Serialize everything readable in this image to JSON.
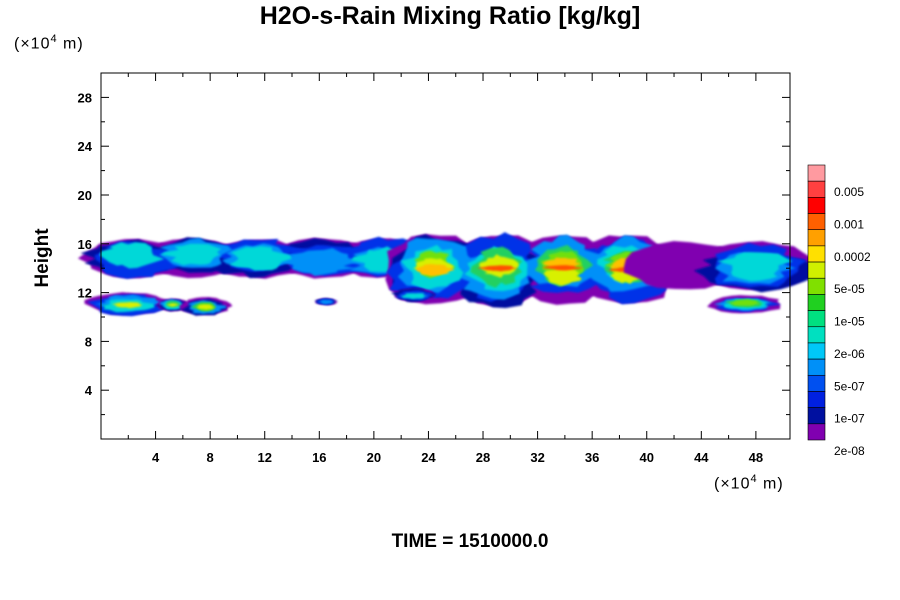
{
  "header": {
    "title": "H2O-s-Rain Mixing Ratio [kg/kg]",
    "y_unit_prefix": "(×10",
    "y_unit_exp": "4",
    "y_unit_suffix": " m)",
    "x_unit_prefix": "(×10",
    "x_unit_exp": "4",
    "x_unit_suffix": " m)"
  },
  "footer": {
    "time_label": "TIME = 1510000.0"
  },
  "chart_data": {
    "type": "heatmap",
    "title": "H2O-s-Rain Mixing Ratio [kg/kg]",
    "xlabel": "",
    "ylabel": "Height",
    "xlim": [
      0,
      50.5
    ],
    "ylim": [
      0,
      30
    ],
    "x_ticks": [
      4,
      8,
      12,
      16,
      20,
      24,
      28,
      32,
      36,
      40,
      44,
      48
    ],
    "y_ticks": [
      4,
      8,
      12,
      16,
      20,
      24,
      28
    ],
    "colorbar": {
      "labels": [
        "0.005",
        "0.001",
        "0.0002",
        "5e-05",
        "1e-05",
        "2e-06",
        "5e-07",
        "1e-07",
        "2e-08"
      ],
      "colors": [
        "#ff9aa0",
        "#ff4040",
        "#ff0000",
        "#ff6000",
        "#ffa000",
        "#ffe000",
        "#d0f000",
        "#80e000",
        "#20d020",
        "#00e080",
        "#00e0c0",
        "#00c8f8",
        "#0090f8",
        "#0050f0",
        "#0020e0",
        "#0010a0",
        "#8000b0"
      ]
    },
    "regions": [
      {
        "name": "upper-band-west",
        "x": [
          0,
          23
        ],
        "y": [
          13.2,
          16.4
        ],
        "level": "low"
      },
      {
        "name": "upper-band-core",
        "x": [
          22,
          41
        ],
        "y": [
          11,
          16.8
        ],
        "level": "high",
        "peak": "0.0002"
      },
      {
        "name": "upper-band-east",
        "x": [
          40,
          50.5
        ],
        "y": [
          12.2,
          16.2
        ],
        "level": "low"
      },
      {
        "name": "lower-patch-1",
        "x": [
          0,
          4
        ],
        "y": [
          10.2,
          12
        ],
        "level": "medium"
      },
      {
        "name": "lower-patch-2",
        "x": [
          4.5,
          6
        ],
        "y": [
          10.5,
          11.5
        ],
        "level": "medium"
      },
      {
        "name": "lower-patch-3",
        "x": [
          6.5,
          8.8
        ],
        "y": [
          10.2,
          11.6
        ],
        "level": "medium"
      },
      {
        "name": "lower-patch-4",
        "x": [
          16,
          17
        ],
        "y": [
          11,
          11.5
        ],
        "level": "low"
      },
      {
        "name": "lower-patch-5",
        "x": [
          22,
          24
        ],
        "y": [
          11.3,
          12.3
        ],
        "level": "low"
      },
      {
        "name": "lower-patch-6",
        "x": [
          45.5,
          49
        ],
        "y": [
          10.3,
          11.8
        ],
        "level": "medium"
      }
    ]
  }
}
